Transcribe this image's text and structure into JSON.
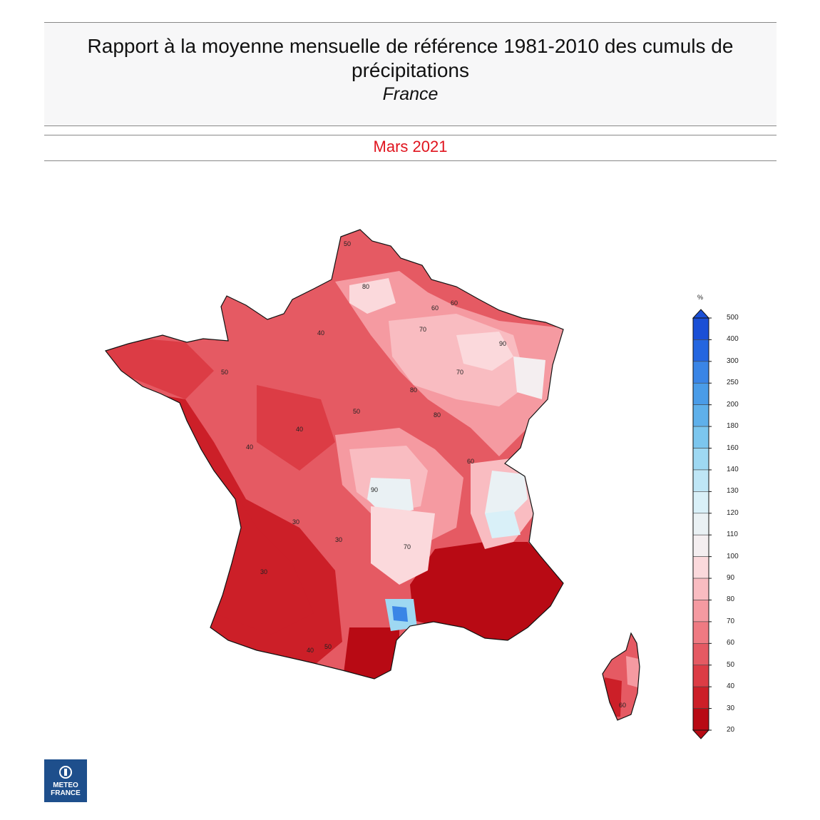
{
  "header": {
    "title": "Rapport à la moyenne mensuelle de référence 1981-2010 des cumuls de précipitations",
    "region": "France",
    "period": "Mars 2021"
  },
  "legend": {
    "unit": "%",
    "ticks": [
      "500",
      "400",
      "300",
      "250",
      "200",
      "180",
      "160",
      "140",
      "130",
      "120",
      "110",
      "100",
      "90",
      "80",
      "70",
      "60",
      "50",
      "40",
      "30",
      "20"
    ],
    "colors": [
      "#1a4fd6",
      "#2466e0",
      "#3a85e6",
      "#4a9ce8",
      "#5fb0ea",
      "#7cc6ee",
      "#9ed8f2",
      "#bfe6f6",
      "#d9f0f8",
      "#eaf1f4",
      "#f4eef0",
      "#fbd9dc",
      "#f9bcc1",
      "#f59aa1",
      "#ef7a82",
      "#e55a63",
      "#dc3c45",
      "#cc1f28",
      "#b80a14"
    ],
    "class_bounds": [
      20,
      30,
      40,
      50,
      60,
      70,
      80,
      90,
      100,
      110,
      120,
      130,
      140,
      160,
      180,
      200,
      250,
      300,
      400,
      500
    ]
  },
  "map_labels": [
    {
      "text": "50"
    },
    {
      "text": "80"
    },
    {
      "text": "60"
    },
    {
      "text": "70"
    },
    {
      "text": "90"
    },
    {
      "text": "40"
    },
    {
      "text": "30"
    },
    {
      "text": "80"
    },
    {
      "text": "60"
    },
    {
      "text": "50"
    },
    {
      "text": "70"
    },
    {
      "text": "90"
    },
    {
      "text": "40"
    },
    {
      "text": "30"
    },
    {
      "text": "60"
    },
    {
      "text": "40"
    },
    {
      "text": "50"
    },
    {
      "text": "70"
    },
    {
      "text": "30"
    },
    {
      "text": "40"
    },
    {
      "text": "80"
    },
    {
      "text": "60"
    },
    {
      "text": "50"
    }
  ],
  "logo": {
    "line1": "METEO",
    "line2": "FRANCE"
  }
}
